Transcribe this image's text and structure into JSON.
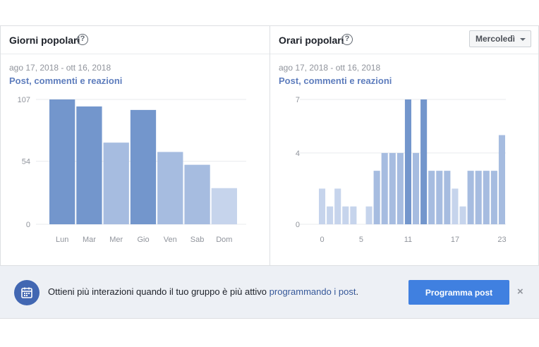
{
  "left_panel": {
    "title": "Giorni popolari",
    "help_icon": "question-circle-icon",
    "date_range": "ago 17, 2018 - ott 16, 2018",
    "metric": "Post, commenti e reazioni"
  },
  "right_panel": {
    "title": "Orari popolari",
    "help_icon": "question-circle-icon",
    "dropdown_value": "Mercoledì",
    "date_range": "ago 17, 2018 - ott 16, 2018",
    "metric": "Post, commenti e reazioni"
  },
  "banner": {
    "icon": "calendar-icon",
    "text_before": "Ottieni più interazioni quando il tuo gruppo è più attivo ",
    "link_text": "programmando i post",
    "text_after": ".",
    "button_label": "Programma post",
    "close_label": "×"
  },
  "chart_data": [
    {
      "type": "bar",
      "categories": [
        "Lun",
        "Mar",
        "Mer",
        "Gio",
        "Ven",
        "Sab",
        "Dom"
      ],
      "values": [
        107,
        101,
        70,
        98,
        62,
        51,
        31
      ],
      "yticks": [
        0,
        54,
        107
      ],
      "ylim": [
        0,
        107
      ],
      "colors": [
        "#7396cc",
        "#7396cc",
        "#a6bce0",
        "#7396cc",
        "#a6bce0",
        "#a6bce0",
        "#c6d4ec"
      ],
      "grid": true
    },
    {
      "type": "bar",
      "categories": [
        "0",
        "1",
        "2",
        "3",
        "4",
        "5",
        "6",
        "7",
        "8",
        "9",
        "10",
        "11",
        "12",
        "13",
        "14",
        "15",
        "16",
        "17",
        "18",
        "19",
        "20",
        "21",
        "22",
        "23"
      ],
      "xtick_labels": [
        "0",
        "5",
        "11",
        "17",
        "23"
      ],
      "values": [
        2,
        1,
        2,
        1,
        1,
        0,
        1,
        3,
        4,
        4,
        4,
        7,
        4,
        7,
        3,
        3,
        3,
        2,
        1,
        3,
        3,
        3,
        3,
        5
      ],
      "yticks": [
        0,
        4,
        7
      ],
      "ylim": [
        0,
        7
      ],
      "colors": [
        "#c6d4ec",
        "#c6d4ec",
        "#c6d4ec",
        "#c6d4ec",
        "#c6d4ec",
        "#c6d4ec",
        "#c6d4ec",
        "#a6bce0",
        "#a6bce0",
        "#a6bce0",
        "#a6bce0",
        "#7396cc",
        "#a6bce0",
        "#7396cc",
        "#a6bce0",
        "#a6bce0",
        "#a6bce0",
        "#c6d4ec",
        "#c6d4ec",
        "#a6bce0",
        "#a6bce0",
        "#a6bce0",
        "#a6bce0",
        "#a6bce0"
      ],
      "grid": true
    }
  ]
}
